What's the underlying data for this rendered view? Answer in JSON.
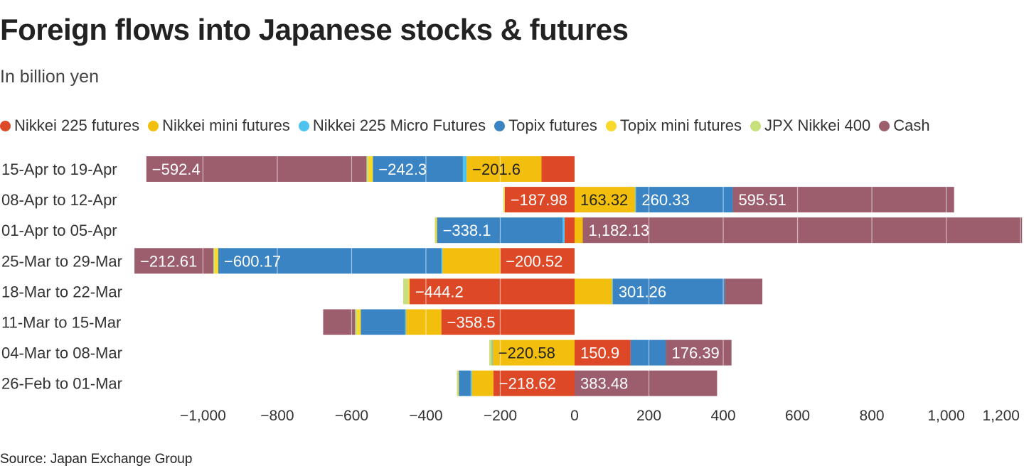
{
  "title": "Foreign flows into Japanese stocks & futures",
  "subtitle": "In billion yen",
  "source": "Source: Japan Exchange Group",
  "chart_data": {
    "type": "bar",
    "orientation": "horizontal",
    "stacked": true,
    "categories": [
      "15-Apr to 19-Apr",
      "08-Apr to 12-Apr",
      "01-Apr to 05-Apr",
      "25-Mar to 29-Mar",
      "18-Mar to 22-Mar",
      "11-Mar to 15-Mar",
      "04-Mar to 08-Mar",
      "26-Feb to 01-Mar"
    ],
    "xlim": [
      -1180,
      1200
    ],
    "xticks": [
      -1000,
      -800,
      -600,
      -400,
      -200,
      0,
      200,
      400,
      600,
      800,
      1000,
      1200
    ],
    "xtick_labels": [
      "−1,000",
      "−800",
      "−600",
      "−400",
      "−200",
      "0",
      "200",
      "400",
      "600",
      "800",
      "1,000",
      "1,200"
    ],
    "grid": "vertical gridlines drawn over bars",
    "legend_position": "top",
    "series": [
      {
        "name": "Nikkei 225 futures",
        "color": "#dd4826",
        "values": [
          -89,
          -187.98,
          -27,
          -200.52,
          -444.2,
          -358.5,
          150.9,
          -218.62
        ],
        "labels": [
          null,
          "−187.98",
          null,
          "−200.52",
          "−444.2",
          "−358.5",
          "150.9",
          "−218.62"
        ]
      },
      {
        "name": "Nikkei mini futures",
        "color": "#f2bf0e",
        "values": [
          -201.6,
          163.32,
          22,
          -155,
          101,
          -95,
          -220.58,
          -58
        ],
        "labels": [
          "−201.6",
          "163.32",
          null,
          null,
          null,
          null,
          "−220.58",
          null
        ]
      },
      {
        "name": "Nikkei 225 Micro Futures",
        "color": "#4fc3f0",
        "values": [
          -10,
          2,
          -5,
          -3,
          2,
          -3,
          -3,
          -3
        ],
        "labels": [
          null,
          null,
          null,
          null,
          null,
          null,
          null,
          null
        ]
      },
      {
        "name": "Topix futures",
        "color": "#3a84c4",
        "values": [
          -242.3,
          260.33,
          -338.1,
          -600.17,
          301.26,
          -119,
          95,
          -32
        ],
        "labels": [
          "−242.3",
          "260.33",
          "−338.1",
          "−600.17",
          "301.26",
          null,
          null,
          null
        ]
      },
      {
        "name": "Topix mini futures",
        "color": "#f8d92c",
        "values": [
          -12,
          -2,
          -3,
          -10,
          -3,
          -10,
          -2,
          -2
        ],
        "labels": [
          null,
          null,
          null,
          null,
          null,
          null,
          null,
          null
        ]
      },
      {
        "name": "JPX Nikkei 400",
        "color": "#c7e07c",
        "values": [
          -5,
          -2,
          -3,
          -3,
          -14,
          -5,
          -4,
          -3
        ],
        "labels": [
          null,
          null,
          null,
          null,
          null,
          null,
          null,
          null
        ]
      },
      {
        "name": "Cash",
        "color": "#9c5e6d",
        "values": [
          -592.4,
          595.51,
          1182.13,
          -212.61,
          101,
          -86,
          176.39,
          383.48
        ],
        "labels": [
          "−592.4",
          "595.51",
          "1,182.13",
          "−212.61",
          null,
          null,
          "176.39",
          "383.48"
        ]
      }
    ]
  }
}
